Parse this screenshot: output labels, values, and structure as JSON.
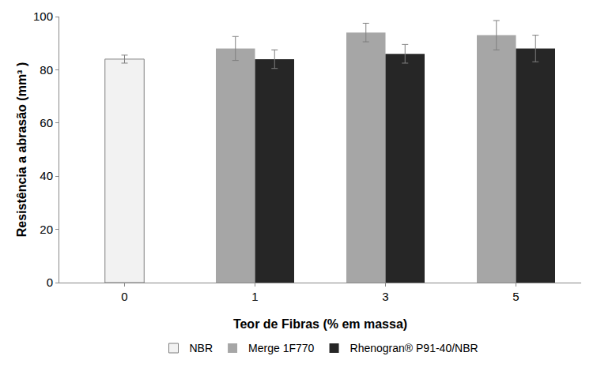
{
  "chart_data": {
    "type": "bar",
    "x_label": "Teor de Fibras (% em massa)",
    "y_label": "Resistência a abrasão (mm³ )",
    "categories": [
      "0",
      "1",
      "3",
      "5"
    ],
    "series": [
      {
        "name": "NBR",
        "color": "#f2f2f2",
        "values": [
          84,
          null,
          null,
          null
        ],
        "errors": [
          1.5,
          null,
          null,
          null
        ]
      },
      {
        "name": "Merge 1F770",
        "color": "#a6a6a6",
        "values": [
          null,
          88,
          94,
          93
        ],
        "errors": [
          null,
          4.5,
          3.5,
          5.5
        ]
      },
      {
        "name": "Rhenogran® P91-40/NBR",
        "color": "#262626",
        "values": [
          null,
          84,
          86,
          88
        ],
        "errors": [
          null,
          3.5,
          3.5,
          5
        ]
      }
    ],
    "ylim": [
      0,
      100
    ],
    "yticks": [
      0,
      20,
      40,
      60,
      80,
      100
    ],
    "grid": false,
    "legend": "bottom"
  }
}
